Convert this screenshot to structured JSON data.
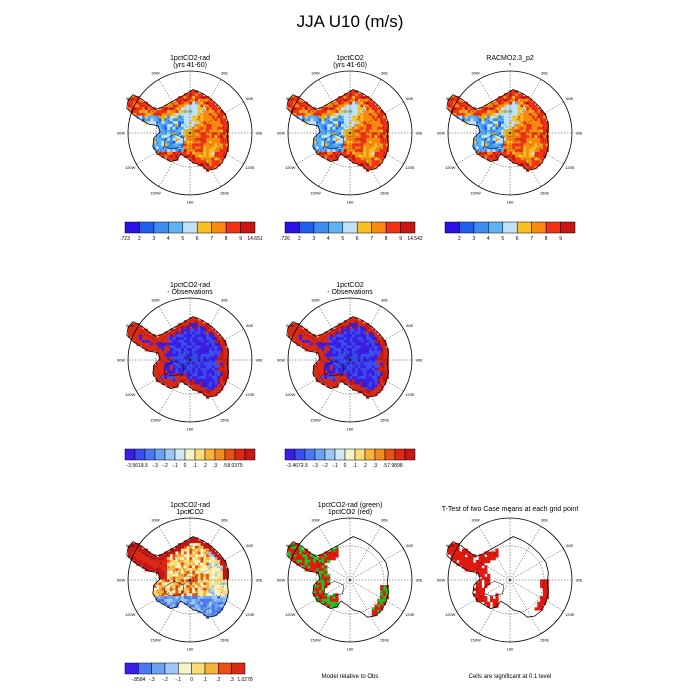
{
  "page": {
    "title": "JJA U10 (m/s)"
  },
  "lon_labels": [
    "0",
    "30E",
    "60E",
    "90E",
    "120E",
    "150E",
    "180",
    "150W",
    "120W",
    "90W",
    "60W",
    "30W"
  ],
  "colors": {
    "abs_scale": [
      "#2a12e8",
      "#1f5ff0",
      "#3b8ef2",
      "#5fb0f4",
      "#bfe2f6",
      "#f9c020",
      "#f98a0f",
      "#ee3316",
      "#cc1414"
    ],
    "diff_scale": [
      "#3a1ee6",
      "#3b4ff0",
      "#4c78f2",
      "#6ba2f4",
      "#9fc8f6",
      "#d2e8f7",
      "#f7f3c8",
      "#f9dd78",
      "#f7b33e",
      "#f28c1f",
      "#ea5117",
      "#da2a16",
      "#c61616"
    ],
    "sens_scale": [
      "#3a1ee6",
      "#4c78f2",
      "#6ba2f4",
      "#9fc8f6",
      "#f7f3c8",
      "#f9dd78",
      "#f7b33e",
      "#ea5117",
      "#da2a16",
      "#c61616"
    ],
    "green": "#22c41e",
    "red": "#e01a10"
  },
  "panels": [
    {
      "title1": "1pctCO2-rad",
      "title2": "(yrs 41-60)",
      "kind": "abs",
      "cbar_labels": [
        ".723",
        "2",
        "3",
        "4",
        "5",
        "6",
        "7",
        "8",
        "9",
        "14.651"
      ]
    },
    {
      "title1": "1pctCO2",
      "title2": "(yrs 41-60)",
      "kind": "abs",
      "cbar_labels": [
        ".726",
        "2",
        "3",
        "4",
        "5",
        "6",
        "7",
        "8",
        "9",
        "14.542"
      ]
    },
    {
      "title1": "RACMO2.3_p2",
      "title2": "",
      "kind": "abs",
      "cbar_labels": [
        "2",
        "3",
        "4",
        "5",
        "6",
        "7",
        "8",
        "9"
      ]
    },
    {
      "title1": "1pctCO2-rad",
      "title2": "- Observations",
      "kind": "diff",
      "cbar_labels": [
        "-3.5619",
        "-.5",
        "-.3",
        "-.2",
        "-.1",
        "0",
        ".1",
        ".2",
        ".3",
        ".5",
        "8.0375"
      ]
    },
    {
      "title1": "1pctCO2",
      "title2": "- Observations",
      "kind": "diff",
      "cbar_labels": [
        "-3.4672",
        "-.5",
        "-.3",
        "-.2",
        "-.1",
        "0",
        ".1",
        ".2",
        ".3",
        ".5",
        "7.9898"
      ]
    },
    {
      "title1": "1pctCO2-rad",
      "title2": "1pctCO2",
      "kind": "sens",
      "cbar_labels": [
        "-.8584",
        "-.3",
        "-.2",
        "-.1",
        "0",
        ".1",
        ".2",
        ".3",
        "1.0278"
      ]
    },
    {
      "title1": "1pctCO2-rad (green)",
      "title2": "1pctCO2 (red)",
      "kind": "green",
      "note": "Model relative to Obs"
    },
    {
      "title1": "T-Test of two Case means at each grid point",
      "title2": "",
      "kind": "ttest",
      "note": "Cells are significant at 0.1 level"
    }
  ],
  "chart_data": {
    "type": "heatmap",
    "title": "JJA U10 (m/s)",
    "projection": "south-polar stereographic",
    "variable": "U10",
    "units": "m/s",
    "season": "JJA",
    "abs_levels": [
      2,
      3,
      4,
      5,
      6,
      7,
      8,
      9
    ],
    "diff_levels": [
      -0.5,
      -0.3,
      -0.2,
      -0.1,
      0,
      0.1,
      0.2,
      0.3,
      0.5
    ],
    "sens_levels": [
      -0.3,
      -0.2,
      -0.1,
      0,
      0.1,
      0.2,
      0.3
    ],
    "panels": [
      {
        "name": "1pctCO2-rad (yrs 41-60)",
        "min": 0.723,
        "max": 14.651
      },
      {
        "name": "1pctCO2 (yrs 41-60)",
        "min": 0.726,
        "max": 14.542
      },
      {
        "name": "RACMO2.3_p2"
      },
      {
        "name": "1pctCO2-rad - Observations",
        "min": -3.5619,
        "max": 8.0375
      },
      {
        "name": "1pctCO2 - Observations",
        "min": -3.4672,
        "max": 7.9898
      },
      {
        "name": "1pctCO2-rad 1pctCO2",
        "min": -0.8584,
        "max": 1.0278
      },
      {
        "name": "1pctCO2-rad (green) 1pctCO2 (red)"
      },
      {
        "name": "T-Test of two Case means at each grid point",
        "significance": 0.1
      }
    ]
  }
}
